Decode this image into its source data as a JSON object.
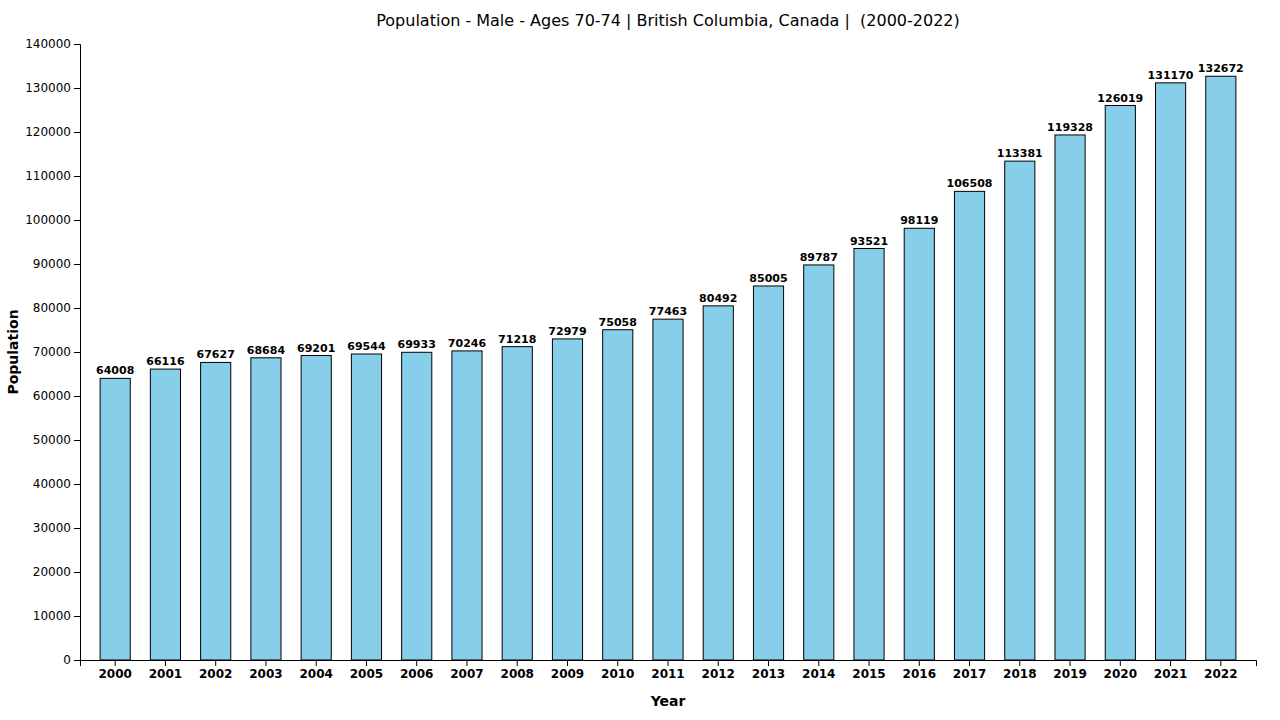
{
  "chart_data": {
    "type": "bar",
    "title": "Population - Male - Ages 70-74 | British Columbia, Canada |  (2000-2022)",
    "xlabel": "Year",
    "ylabel": "Population",
    "categories": [
      "2000",
      "2001",
      "2002",
      "2003",
      "2004",
      "2005",
      "2006",
      "2007",
      "2008",
      "2009",
      "2010",
      "2011",
      "2012",
      "2013",
      "2014",
      "2015",
      "2016",
      "2017",
      "2018",
      "2019",
      "2020",
      "2021",
      "2022"
    ],
    "values": [
      64008,
      66116,
      67627,
      68684,
      69201,
      69544,
      69933,
      70246,
      71218,
      72979,
      75058,
      77463,
      80492,
      85005,
      89787,
      93521,
      98119,
      106508,
      113381,
      119328,
      126019,
      131170,
      132672
    ],
    "color": "#87CEEB",
    "ylim": [
      0,
      140000
    ],
    "yticks": [
      0,
      10000,
      20000,
      30000,
      40000,
      50000,
      60000,
      70000,
      80000,
      90000,
      100000,
      110000,
      120000,
      130000,
      140000
    ],
    "grid": false,
    "data_labels": true
  }
}
